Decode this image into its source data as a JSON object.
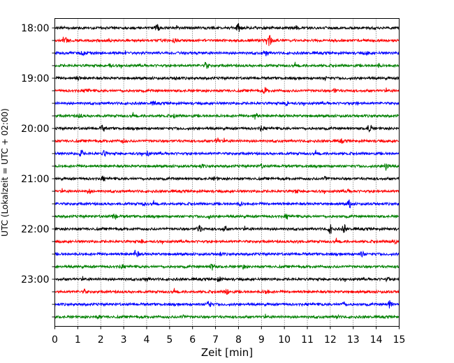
{
  "chart_data": {
    "type": "line",
    "title": "",
    "xlabel": "Zeit  [min]",
    "ylabel": "UTC (Lokalzeit = UTC + 02:00)",
    "xlim": [
      0,
      15
    ],
    "x_ticks": [
      0,
      1,
      2,
      3,
      4,
      5,
      6,
      7,
      8,
      9,
      10,
      11,
      12,
      13,
      14,
      15
    ],
    "x_tick_labels": [
      "0",
      "1",
      "2",
      "3",
      "4",
      "5",
      "6",
      "7",
      "8",
      "9",
      "10",
      "11",
      "12",
      "13",
      "14",
      "15"
    ],
    "grid": "vertical-dotted",
    "row_minutes": 15,
    "y_tick_labels": [
      "18:00",
      "19:00",
      "20:00",
      "21:00",
      "22:00",
      "23:00"
    ],
    "colors": [
      "#000000",
      "#ff0000",
      "#0000ff",
      "#008000"
    ],
    "rows": [
      {
        "start": "18:00",
        "color": "#000000",
        "events": [
          [
            4.45,
            4
          ],
          [
            8.0,
            5
          ],
          [
            10.5,
            2
          ]
        ]
      },
      {
        "start": "18:15",
        "color": "#ff0000",
        "events": [
          [
            0.5,
            3
          ],
          [
            9.35,
            7
          ],
          [
            5.2,
            2
          ]
        ]
      },
      {
        "start": "18:30",
        "color": "#0000ff",
        "events": [
          [
            1.2,
            2
          ],
          [
            9.2,
            4
          ],
          [
            13.6,
            2
          ]
        ]
      },
      {
        "start": "18:45",
        "color": "#008000",
        "events": [
          [
            6.6,
            4
          ],
          [
            14.1,
            2
          ],
          [
            2.4,
            2
          ]
        ]
      },
      {
        "start": "19:00",
        "color": "#000000",
        "events": [
          [
            1.0,
            2
          ],
          [
            5.3,
            2
          ],
          [
            11.8,
            2
          ]
        ]
      },
      {
        "start": "19:15",
        "color": "#ff0000",
        "events": [
          [
            9.15,
            4
          ],
          [
            1.4,
            2
          ],
          [
            12.2,
            2
          ]
        ]
      },
      {
        "start": "19:30",
        "color": "#0000ff",
        "events": [
          [
            4.3,
            2
          ],
          [
            10.1,
            3
          ],
          [
            13.1,
            2
          ]
        ]
      },
      {
        "start": "19:45",
        "color": "#008000",
        "events": [
          [
            8.75,
            5
          ],
          [
            1.1,
            2
          ],
          [
            5.2,
            2
          ]
        ]
      },
      {
        "start": "20:00",
        "color": "#000000",
        "events": [
          [
            2.1,
            4
          ],
          [
            9.0,
            3
          ],
          [
            13.7,
            6
          ]
        ]
      },
      {
        "start": "20:15",
        "color": "#ff0000",
        "events": [
          [
            7.1,
            3
          ],
          [
            3.0,
            2
          ],
          [
            12.5,
            2
          ]
        ]
      },
      {
        "start": "20:30",
        "color": "#0000ff",
        "events": [
          [
            1.15,
            4
          ],
          [
            2.15,
            3
          ],
          [
            4.05,
            3
          ]
        ]
      },
      {
        "start": "20:45",
        "color": "#008000",
        "events": [
          [
            14.45,
            6
          ],
          [
            6.4,
            2
          ],
          [
            9.0,
            2
          ]
        ]
      },
      {
        "start": "21:00",
        "color": "#000000",
        "events": [
          [
            2.1,
            2
          ],
          [
            7.0,
            2
          ],
          [
            11.8,
            3
          ]
        ]
      },
      {
        "start": "21:15",
        "color": "#ff0000",
        "events": [
          [
            1.5,
            3
          ],
          [
            10.5,
            2
          ],
          [
            12.8,
            2
          ]
        ]
      },
      {
        "start": "21:30",
        "color": "#0000ff",
        "events": [
          [
            12.85,
            5
          ],
          [
            3.9,
            2
          ],
          [
            8.1,
            2
          ]
        ]
      },
      {
        "start": "21:45",
        "color": "#008000",
        "events": [
          [
            2.6,
            4
          ],
          [
            6.7,
            2
          ],
          [
            10.1,
            2
          ]
        ]
      },
      {
        "start": "22:00",
        "color": "#000000",
        "events": [
          [
            6.3,
            5
          ],
          [
            7.4,
            4
          ],
          [
            12.0,
            6
          ],
          [
            12.6,
            5
          ]
        ]
      },
      {
        "start": "22:15",
        "color": "#ff0000",
        "events": [
          [
            14.75,
            5
          ],
          [
            3.8,
            2
          ],
          [
            10.6,
            2
          ]
        ]
      },
      {
        "start": "22:30",
        "color": "#0000ff",
        "events": [
          [
            3.55,
            5
          ],
          [
            13.4,
            3
          ],
          [
            7.2,
            2
          ]
        ]
      },
      {
        "start": "22:45",
        "color": "#008000",
        "events": [
          [
            6.85,
            5
          ],
          [
            8.2,
            2
          ],
          [
            2.9,
            2
          ]
        ]
      },
      {
        "start": "23:00",
        "color": "#000000",
        "events": [
          [
            7.15,
            3
          ],
          [
            4.0,
            2
          ],
          [
            14.5,
            2
          ]
        ]
      },
      {
        "start": "23:15",
        "color": "#ff0000",
        "events": [
          [
            7.5,
            4
          ],
          [
            9.2,
            3
          ],
          [
            1.3,
            2
          ]
        ]
      },
      {
        "start": "23:30",
        "color": "#0000ff",
        "events": [
          [
            6.7,
            5
          ],
          [
            12.6,
            3
          ],
          [
            14.6,
            5
          ]
        ]
      },
      {
        "start": "23:45",
        "color": "#008000",
        "events": [
          [
            1.9,
            2
          ],
          [
            12.3,
            2
          ],
          [
            5.6,
            2
          ]
        ]
      }
    ]
  }
}
